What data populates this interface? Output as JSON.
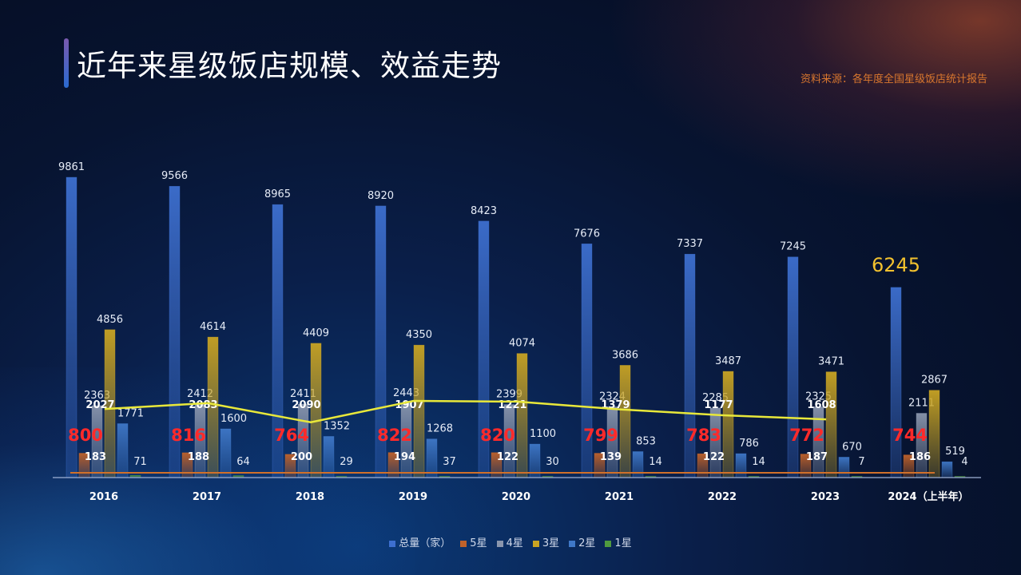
{
  "title": "近年来星级饭店规模、效益走势",
  "source": "资料来源：各年度全国星级饭店统计报告",
  "colors": {
    "total": "#3d6fcf",
    "star5": "#c0622a",
    "star4": "#8a96ad",
    "star3": "#c9a423",
    "star2": "#3f78c8",
    "star1": "#4f9a3f",
    "trend": "#e8e83a",
    "trend_label": "#ff2a2a",
    "highlight": "#f2c12e"
  },
  "legend": [
    {
      "key": "total",
      "label": "总量（家）"
    },
    {
      "key": "star5",
      "label": "5星"
    },
    {
      "key": "star4",
      "label": "4星"
    },
    {
      "key": "star3",
      "label": "3星"
    },
    {
      "key": "star2",
      "label": "2星"
    },
    {
      "key": "star1",
      "label": "1星"
    }
  ],
  "chart_data": {
    "type": "bar",
    "categories": [
      "2016",
      "2017",
      "2018",
      "2019",
      "2020",
      "2021",
      "2022",
      "2023",
      "2024（上半年）"
    ],
    "series": [
      {
        "name": "总量（家）",
        "key": "total",
        "values": [
          9861,
          9566,
          8965,
          8920,
          8423,
          7676,
          7337,
          7245,
          6245
        ]
      },
      {
        "name": "5星",
        "key": "star5",
        "values": [
          800,
          816,
          764,
          822,
          820,
          799,
          783,
          772,
          744
        ]
      },
      {
        "name": "4星",
        "key": "star4",
        "values": [
          2363,
          2412,
          2411,
          2443,
          2399,
          2324,
          2285,
          2325,
          2111
        ]
      },
      {
        "name": "3星",
        "key": "star3",
        "values": [
          4856,
          4614,
          4409,
          4350,
          4074,
          3686,
          3487,
          3471,
          2867
        ]
      },
      {
        "name": "2星",
        "key": "star2",
        "values": [
          1771,
          1600,
          1352,
          1268,
          1100,
          853,
          786,
          670,
          519
        ]
      },
      {
        "name": "1星",
        "key": "star1",
        "values": [
          71,
          64,
          29,
          37,
          30,
          14,
          14,
          7,
          4
        ]
      }
    ],
    "overlay_labels": {
      "near_star4": [
        "2027",
        "2083",
        "2090",
        "1907",
        "1221",
        "1379",
        "1177",
        "1608",
        ""
      ],
      "near_star5": [
        "183",
        "188",
        "200",
        "194",
        "122",
        "139",
        "122",
        "187",
        "186"
      ]
    },
    "trend_series": {
      "values": [
        800,
        816,
        764,
        822,
        820,
        799,
        783,
        772,
        744
      ]
    },
    "highlight_label": "6245",
    "ylim": [
      0,
      10000
    ],
    "grid": false,
    "legend_position": "bottom"
  }
}
